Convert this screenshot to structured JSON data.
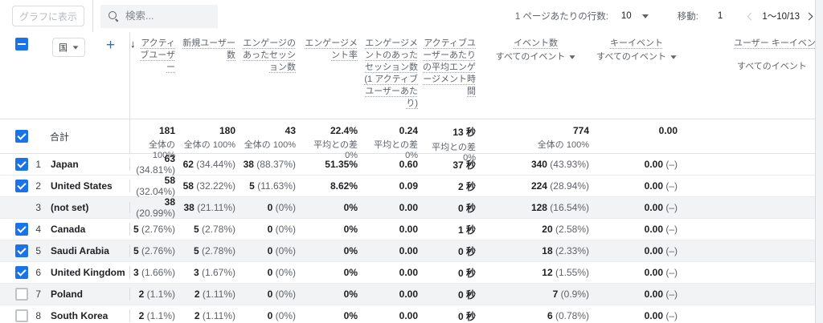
{
  "toolbar": {
    "chart_button": "グラフに表示",
    "search_placeholder": "検索...",
    "rows_per_page_label": "1 ページあたりの行数:",
    "rows_per_page_value": "10",
    "goto_label": "移動:",
    "goto_value": "1",
    "range_text": "1～10/13"
  },
  "table": {
    "dimension_label": "国",
    "add_column_label": "+",
    "columns": [
      {
        "label": "アクティブユーザー",
        "sorted": true
      },
      {
        "label": "新規ユーザー数"
      },
      {
        "label": "エンゲージのあったセッション数"
      },
      {
        "label": "エンゲージメント率"
      },
      {
        "label": "エンゲージメントのあったセッション数 (1 アクティブユーザーあたり)"
      },
      {
        "label": "アクティブユーザーあたりの平均エンゲージメント時間"
      },
      {
        "label": "イベント数",
        "sub": "すべてのイベント",
        "caret": true
      },
      {
        "label": "キーイベント",
        "sub": "すべてのイベント",
        "caret": true
      },
      {
        "label": "ユーザー キーイベント率",
        "sub": "すべてのイベント",
        "caret": false
      }
    ],
    "totals": {
      "label": "合計",
      "cells": [
        {
          "v": "181",
          "sub": "全体の 100%"
        },
        {
          "v": "180",
          "sub": "全体の 100%"
        },
        {
          "v": "43",
          "sub": "全体の 100%"
        },
        {
          "v": "22.4%",
          "sub": "平均との差 0%"
        },
        {
          "v": "0.24",
          "sub": "平均との差 0%"
        },
        {
          "v": "13 秒",
          "sub": "平均との差 0%"
        },
        {
          "v": "774",
          "sub": "全体の 100%"
        },
        {
          "v": "0.00",
          "sub": ""
        },
        {
          "v": "",
          "sub": ""
        }
      ]
    },
    "rows": [
      {
        "num": "1",
        "country": "Japan",
        "checkbox": "checked",
        "shaded": false,
        "cells": [
          {
            "v": "63",
            "p": "(34.81%)"
          },
          {
            "v": "62",
            "p": "(34.44%)"
          },
          {
            "v": "38",
            "p": "(88.37%)"
          },
          {
            "v": "51.35%"
          },
          {
            "v": "0.60"
          },
          {
            "v": "37 秒"
          },
          {
            "v": "340",
            "p": "(43.93%)"
          },
          {
            "v": "0.00",
            "p": "(–)"
          },
          {
            "v": ""
          }
        ]
      },
      {
        "num": "2",
        "country": "United States",
        "checkbox": "checked",
        "shaded": false,
        "cells": [
          {
            "v": "58",
            "p": "(32.04%)"
          },
          {
            "v": "58",
            "p": "(32.22%)"
          },
          {
            "v": "5",
            "p": "(11.63%)"
          },
          {
            "v": "8.62%"
          },
          {
            "v": "0.09"
          },
          {
            "v": "2 秒"
          },
          {
            "v": "224",
            "p": "(28.94%)"
          },
          {
            "v": "0.00",
            "p": "(–)"
          },
          {
            "v": ""
          }
        ]
      },
      {
        "num": "3",
        "country": "(not set)",
        "checkbox": "none",
        "shaded": true,
        "cells": [
          {
            "v": "38",
            "p": "(20.99%)"
          },
          {
            "v": "38",
            "p": "(21.11%)"
          },
          {
            "v": "0",
            "p": "(0%)"
          },
          {
            "v": "0%"
          },
          {
            "v": "0.00"
          },
          {
            "v": "0 秒"
          },
          {
            "v": "128",
            "p": "(16.54%)"
          },
          {
            "v": "0.00",
            "p": "(–)"
          },
          {
            "v": ""
          }
        ]
      },
      {
        "num": "4",
        "country": "Canada",
        "checkbox": "checked",
        "shaded": false,
        "cells": [
          {
            "v": "5",
            "p": "(2.76%)"
          },
          {
            "v": "5",
            "p": "(2.78%)"
          },
          {
            "v": "0",
            "p": "(0%)"
          },
          {
            "v": "0%"
          },
          {
            "v": "0.00"
          },
          {
            "v": "1 秒"
          },
          {
            "v": "20",
            "p": "(2.58%)"
          },
          {
            "v": "0.00",
            "p": "(–)"
          },
          {
            "v": ""
          }
        ]
      },
      {
        "num": "5",
        "country": "Saudi Arabia",
        "checkbox": "checked",
        "shaded": true,
        "cells": [
          {
            "v": "5",
            "p": "(2.76%)"
          },
          {
            "v": "5",
            "p": "(2.78%)"
          },
          {
            "v": "0",
            "p": "(0%)"
          },
          {
            "v": "0%"
          },
          {
            "v": "0.00"
          },
          {
            "v": "0 秒"
          },
          {
            "v": "18",
            "p": "(2.33%)"
          },
          {
            "v": "0.00",
            "p": "(–)"
          },
          {
            "v": ""
          }
        ]
      },
      {
        "num": "6",
        "country": "United Kingdom",
        "checkbox": "checked",
        "shaded": false,
        "cells": [
          {
            "v": "3",
            "p": "(1.66%)"
          },
          {
            "v": "3",
            "p": "(1.67%)"
          },
          {
            "v": "0",
            "p": "(0%)"
          },
          {
            "v": "0%"
          },
          {
            "v": "0.00"
          },
          {
            "v": "0 秒"
          },
          {
            "v": "12",
            "p": "(1.55%)"
          },
          {
            "v": "0.00",
            "p": "(–)"
          },
          {
            "v": ""
          }
        ]
      },
      {
        "num": "7",
        "country": "Poland",
        "checkbox": "unchecked",
        "shaded": true,
        "cells": [
          {
            "v": "2",
            "p": "(1.1%)"
          },
          {
            "v": "2",
            "p": "(1.11%)"
          },
          {
            "v": "0",
            "p": "(0%)"
          },
          {
            "v": "0%"
          },
          {
            "v": "0.00"
          },
          {
            "v": "0 秒"
          },
          {
            "v": "7",
            "p": "(0.9%)"
          },
          {
            "v": "0.00",
            "p": "(–)"
          },
          {
            "v": ""
          }
        ]
      },
      {
        "num": "8",
        "country": "South Korea",
        "checkbox": "unchecked",
        "shaded": false,
        "cells": [
          {
            "v": "2",
            "p": "(1.1%)"
          },
          {
            "v": "2",
            "p": "(1.11%)"
          },
          {
            "v": "0",
            "p": "(0%)"
          },
          {
            "v": "0%"
          },
          {
            "v": "0.00"
          },
          {
            "v": "0 秒"
          },
          {
            "v": "6",
            "p": "(0.78%)"
          },
          {
            "v": "0.00",
            "p": "(–)"
          },
          {
            "v": ""
          }
        ]
      }
    ]
  },
  "colors": {
    "accent": "#1a73e8",
    "row_shade": "#f1f3f4",
    "border": "#dadce0"
  }
}
